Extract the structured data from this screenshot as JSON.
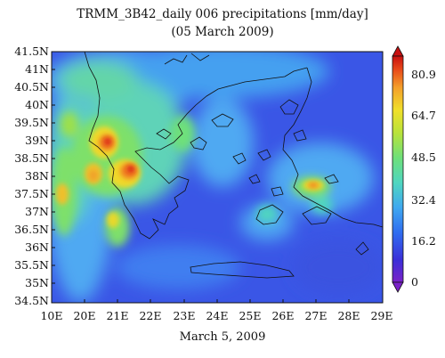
{
  "title": "TRMM_3B42_daily 006 precipitations [mm/day]",
  "subtitle": "(05 March 2009)",
  "footer": "March 5, 2009",
  "axes": {
    "y_ticks": [
      "41.5N",
      "41N",
      "40.5N",
      "40N",
      "39.5N",
      "39N",
      "38.5N",
      "38N",
      "37.5N",
      "37N",
      "36.5N",
      "36N",
      "35.5N",
      "35N",
      "34.5N"
    ],
    "x_ticks": [
      "10E",
      "20E",
      "21E",
      "22E",
      "23E",
      "24E",
      "25E",
      "26E",
      "27E",
      "28E",
      "29E"
    ]
  },
  "colorbar": {
    "labels": [
      "80.9",
      "64.7",
      "48.5",
      "32.4",
      "16.2",
      "0"
    ],
    "min": 0,
    "max": 80.9,
    "colors": [
      "#7a22c8",
      "#3a2fd8",
      "#2f6df0",
      "#3fa8f0",
      "#4fd6c0",
      "#6ee07a",
      "#b8e23a",
      "#f0e02a",
      "#f4a02a",
      "#e84a1a",
      "#c81010"
    ]
  },
  "map": {
    "region": "Greece / Aegean Sea",
    "lon_range": [
      19,
      29
    ],
    "lat_range": [
      34.5,
      41.5
    ],
    "background_level": "low precipitation over sea",
    "hotspots": [
      {
        "lon": 20.7,
        "lat": 38.9,
        "value": 80
      },
      {
        "lon": 21.0,
        "lat": 38.2,
        "value": 78
      },
      {
        "lon": 20.3,
        "lat": 38.3,
        "value": 68
      },
      {
        "lon": 19.3,
        "lat": 37.5,
        "value": 65
      },
      {
        "lon": 21.0,
        "lat": 36.9,
        "value": 60
      },
      {
        "lon": 27.0,
        "lat": 37.8,
        "value": 72
      },
      {
        "lon": 27.5,
        "lat": 37.9,
        "value": 55
      }
    ]
  }
}
